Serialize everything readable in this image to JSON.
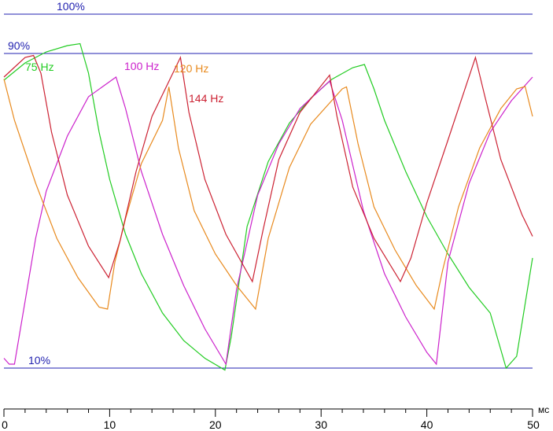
{
  "chart_data": {
    "type": "line",
    "xlabel": "мс",
    "xlim": [
      0,
      50
    ],
    "ylim": [
      0,
      100
    ],
    "x_ticks": [
      0,
      10,
      20,
      30,
      40,
      50
    ],
    "reference_lines": [
      {
        "value": 100,
        "label": "100%"
      },
      {
        "value": 90,
        "label": "90%"
      },
      {
        "value": 10,
        "label": "10%"
      }
    ],
    "series": [
      {
        "name": "75 Hz",
        "color": "#22cc22",
        "x": [
          0,
          2,
          4,
          6,
          7.2,
          8,
          9,
          10,
          11.5,
          13,
          15,
          17,
          19,
          20.9,
          21.5,
          23,
          25,
          27,
          29,
          31,
          33,
          34.1,
          35,
          36,
          38,
          40,
          42,
          44,
          46,
          47.5,
          48.5,
          50
        ],
        "y": [
          83.2,
          87.6,
          90.4,
          92.0,
          92.5,
          85,
          70,
          58,
          44,
          34,
          24,
          17,
          12.5,
          9.5,
          18,
          46,
          62.5,
          72.3,
          78.6,
          83.4,
          86.4,
          87.2,
          81,
          73,
          60,
          48.5,
          39,
          30.5,
          24,
          10.0,
          13,
          38
        ]
      },
      {
        "name": "100 Hz",
        "color": "#cc22cc",
        "x": [
          0,
          0.5,
          1,
          2,
          3,
          4,
          6,
          8,
          10.6,
          11.5,
          13,
          15,
          17,
          19,
          21,
          22,
          24,
          26,
          28,
          30.8,
          32,
          34,
          36,
          38,
          40,
          40.9,
          42,
          44,
          46,
          48,
          50
        ],
        "y": [
          12.5,
          11,
          11,
          27,
          43,
          55,
          69,
          79,
          84.0,
          76,
          60,
          44,
          31,
          20,
          11,
          30,
          54,
          67,
          76,
          83,
          73,
          50,
          34,
          23,
          14,
          11,
          37,
          57,
          70,
          78,
          84
        ]
      },
      {
        "name": "120 Hz",
        "color": "#e88a1e",
        "x": [
          0,
          1,
          3,
          5,
          7,
          9,
          9.8,
          10.5,
          11.5,
          13,
          15,
          15.6,
          16.5,
          18,
          20,
          22,
          23.8,
          25,
          27,
          29,
          32,
          32.4,
          33.5,
          35,
          37,
          39,
          40.7,
          41.5,
          43,
          45,
          47,
          48.5,
          49.3,
          50
        ],
        "y": [
          83.5,
          73,
          57,
          43,
          33,
          25.5,
          25,
          37,
          48,
          62,
          73,
          81.5,
          66,
          50,
          39,
          31,
          25,
          43,
          61,
          72,
          81,
          81.5,
          67,
          51,
          40,
          31,
          25,
          35,
          51,
          66,
          76,
          81,
          81.6,
          74
        ]
      },
      {
        "name": "144 Hz",
        "color": "#cc2233",
        "x": [
          0,
          1,
          2,
          2.8,
          3.5,
          4.5,
          6,
          8,
          9.9,
          11,
          12.5,
          14,
          16.7,
          17.5,
          19,
          21,
          23.5,
          24.5,
          26,
          28,
          30.8,
          31.5,
          33,
          35,
          37.5,
          38.5,
          40,
          42,
          44.6,
          45.5,
          47,
          49,
          50
        ],
        "y": [
          84,
          86.5,
          89,
          89.5,
          85,
          70,
          54,
          41,
          33,
          42.5,
          60,
          74,
          89,
          75,
          58,
          44,
          32,
          45,
          63,
          75,
          84.5,
          74,
          56,
          43,
          32,
          38,
          52,
          68,
          89,
          79,
          63,
          49,
          43.5
        ]
      }
    ],
    "series_labels": [
      {
        "text": "75 Hz"
      },
      {
        "text": "100 Hz"
      },
      {
        "text": "120 Hz"
      },
      {
        "text": "144 Hz"
      }
    ]
  }
}
